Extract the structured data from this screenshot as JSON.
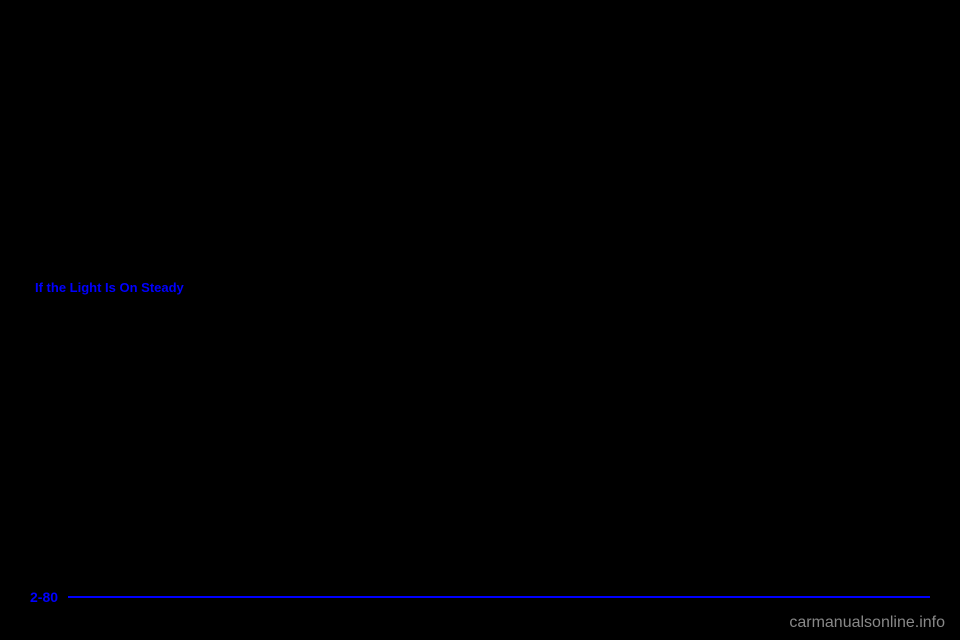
{
  "section": {
    "heading": "If the Light Is On Steady"
  },
  "footer": {
    "pageNumber": "2-80"
  },
  "watermark": {
    "text": "carmanualsonline.info"
  },
  "colors": {
    "background": "#000000",
    "accent": "#0000ff",
    "watermark": "#888888"
  },
  "typography": {
    "heading_fontsize": 13,
    "heading_weight": "bold",
    "pagenum_fontsize": 14,
    "pagenum_weight": "bold",
    "watermark_fontsize": 16
  }
}
